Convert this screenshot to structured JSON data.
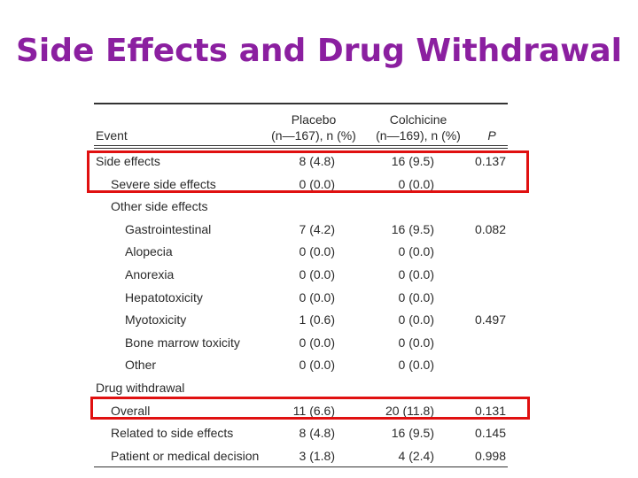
{
  "slide": {
    "title": "Side Effects and Drug Withdrawal"
  },
  "table": {
    "headers": {
      "event": "Event",
      "placebo_line1": "Placebo",
      "placebo_line2": "(n—167), n (%)",
      "colchicine_line1": "Colchicine",
      "colchicine_line2": "(n—169), n (%)",
      "p": "P"
    },
    "rows": [
      {
        "label": "Side effects",
        "placebo": "8 (4.8)",
        "colchicine": "16 (9.5)",
        "p": "0.137"
      },
      {
        "label": "Severe side effects",
        "placebo": "0 (0.0)",
        "colchicine": "0 (0.0)",
        "p": ""
      },
      {
        "label": "Other side effects",
        "placebo": "",
        "colchicine": "",
        "p": ""
      },
      {
        "label": "Gastrointestinal",
        "placebo": "7 (4.2)",
        "colchicine": "16 (9.5)",
        "p": "0.082"
      },
      {
        "label": "Alopecia",
        "placebo": "0 (0.0)",
        "colchicine": "0 (0.0)",
        "p": ""
      },
      {
        "label": "Anorexia",
        "placebo": "0 (0.0)",
        "colchicine": "0 (0.0)",
        "p": ""
      },
      {
        "label": "Hepatotoxicity",
        "placebo": "0 (0.0)",
        "colchicine": "0 (0.0)",
        "p": ""
      },
      {
        "label": "Myotoxicity",
        "placebo": "1 (0.6)",
        "colchicine": "0 (0.0)",
        "p": "0.497"
      },
      {
        "label": "Bone marrow toxicity",
        "placebo": "0 (0.0)",
        "colchicine": "0 (0.0)",
        "p": ""
      },
      {
        "label": "Other",
        "placebo": "0 (0.0)",
        "colchicine": "0 (0.0)",
        "p": ""
      },
      {
        "label": "Drug withdrawal",
        "placebo": "",
        "colchicine": "",
        "p": ""
      },
      {
        "label": "Overall",
        "placebo": "11 (6.6)",
        "colchicine": "20 (11.8)",
        "p": "0.131"
      },
      {
        "label": "Related to side effects",
        "placebo": "8 (4.8)",
        "colchicine": "16 (9.5)",
        "p": "0.145"
      },
      {
        "label": "Patient or medical decision",
        "placebo": "3 (1.8)",
        "colchicine": "4 (2.4)",
        "p": "0.998"
      }
    ]
  },
  "colors": {
    "title": "#8b1fa0",
    "highlight": "#e01010",
    "text": "#2a2a2a"
  }
}
